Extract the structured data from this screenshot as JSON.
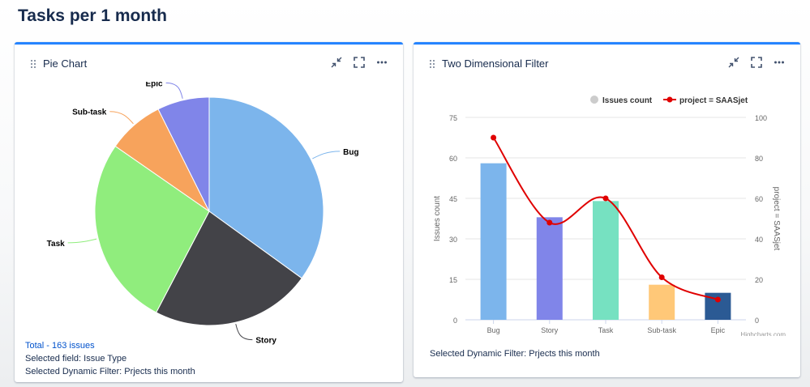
{
  "page": {
    "title": "Tasks per 1 month"
  },
  "pie_card": {
    "title": "Pie Chart",
    "footer": {
      "total": "Total - 163 issues",
      "field": "Selected field: Issue Type",
      "filter": "Selected Dynamic Filter: Prjects this month"
    }
  },
  "bar_card": {
    "title": "Two Dimensional Filter",
    "footer": {
      "filter": "Selected Dynamic Filter: Prjects this month"
    },
    "credits": "Highcharts.com"
  },
  "icons": {
    "shrink": "shrink-icon",
    "expand": "expand-icon",
    "more": "more-icon",
    "drag": "drag-handle-icon"
  },
  "chart_data": [
    {
      "type": "pie",
      "categories": [
        "Bug",
        "Story",
        "Task",
        "Sub-task",
        "Epic"
      ],
      "values": [
        57,
        37,
        44,
        13,
        12
      ],
      "colors": [
        "#7cb5ec",
        "#434348",
        "#90ed7d",
        "#f7a35c",
        "#8085e9"
      ]
    },
    {
      "type": "bar",
      "categories": [
        "Bug",
        "Story",
        "Task",
        "Sub-task",
        "Epic"
      ],
      "ylabel": "Issues count",
      "y2label": "project = SAASjet",
      "ylim": [
        0,
        75
      ],
      "y2lim": [
        0,
        100
      ],
      "yticks": [
        0,
        15,
        30,
        45,
        60,
        75
      ],
      "y2ticks": [
        0,
        20,
        40,
        60,
        80,
        100
      ],
      "grid": true,
      "legend_position": "top-right",
      "series": [
        {
          "name": "Issues count",
          "type": "bar",
          "values": [
            58,
            38,
            44,
            13,
            10
          ],
          "colors": [
            "#7cb5ec",
            "#8085e9",
            "#76e1c1",
            "#ffc878",
            "#2b5a94"
          ],
          "legend_color": "#cccccc"
        },
        {
          "name": "project = SAASjet",
          "type": "spline",
          "axis": "right",
          "values": [
            90,
            48,
            60,
            21,
            10
          ],
          "color": "#e00000"
        }
      ]
    }
  ]
}
